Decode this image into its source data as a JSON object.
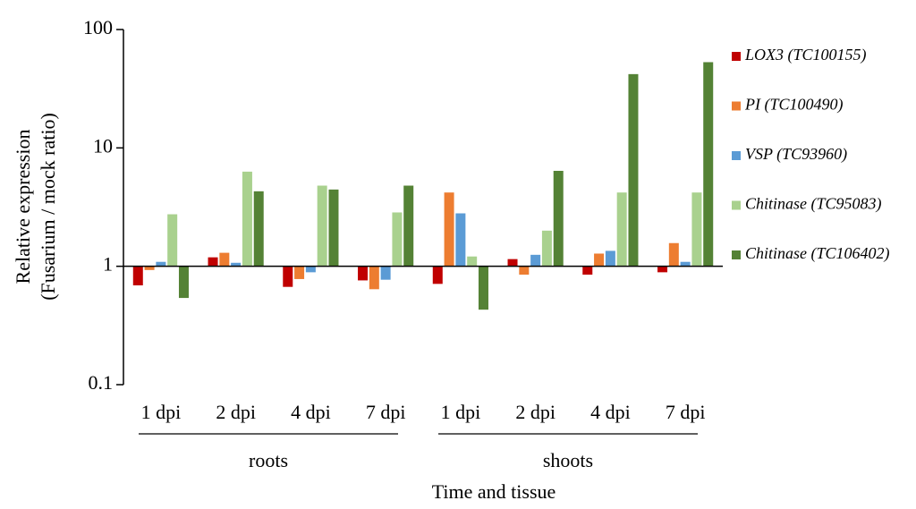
{
  "chart_data": {
    "type": "bar",
    "log_scale": true,
    "ylabel": [
      "Relative expression",
      "(Fusarium / mock ratio)"
    ],
    "xlabel": "Time and tissue",
    "groups": [
      {
        "label": "roots",
        "categories": [
          "1 dpi",
          "2 dpi",
          "4 dpi",
          "7 dpi"
        ]
      },
      {
        "label": "shoots",
        "categories": [
          "1 dpi",
          "2 dpi",
          "4 dpi",
          "7 dpi"
        ]
      }
    ],
    "series": [
      {
        "name": "LOX3 (TC100155)",
        "color": "#c00000",
        "values": [
          0.69,
          1.19,
          0.67,
          0.76,
          0.71,
          1.15,
          0.85,
          0.89
        ]
      },
      {
        "name": "PI (TC100490)",
        "color": "#ed7d31",
        "values": [
          0.93,
          1.3,
          0.78,
          0.64,
          4.2,
          0.85,
          1.28,
          1.57
        ]
      },
      {
        "name": "VSP (TC93960)",
        "color": "#5b9bd5",
        "values": [
          1.09,
          1.07,
          0.89,
          0.77,
          2.8,
          1.25,
          1.35,
          1.09
        ]
      },
      {
        "name": "Chitinase (TC95083)",
        "color": "#a9d18e",
        "values": [
          2.75,
          6.3,
          4.8,
          2.85,
          1.21,
          2.0,
          4.2,
          4.2
        ]
      },
      {
        "name": "Chitinase (TC106402)",
        "color": "#548235",
        "values": [
          0.54,
          4.3,
          4.45,
          4.8,
          0.43,
          6.4,
          42,
          53
        ]
      }
    ],
    "ylim": [
      0.1,
      100
    ],
    "yticks": [
      0.1,
      1,
      10,
      100
    ],
    "legend": "right"
  }
}
